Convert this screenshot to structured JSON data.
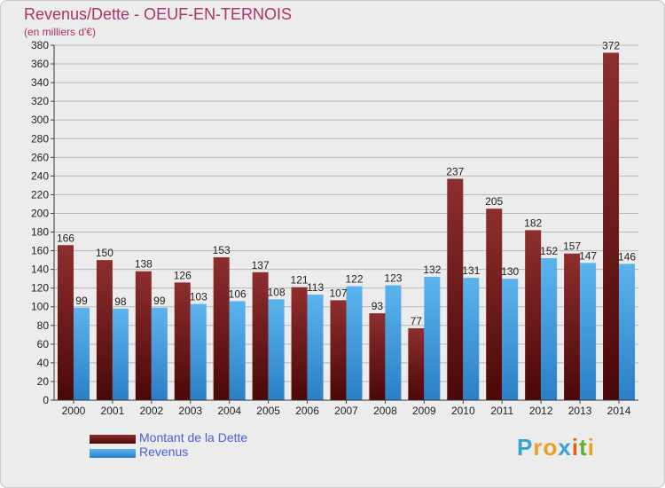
{
  "chart_data": {
    "type": "bar",
    "title": "Revenus/Dette - OEUF-EN-TERNOIS",
    "subtitle": "(en milliers d'€)",
    "xlabel": "",
    "ylabel": "",
    "ylim": [
      0,
      380
    ],
    "ytick_step": 20,
    "categories": [
      "2000",
      "2001",
      "2002",
      "2003",
      "2004",
      "2005",
      "2006",
      "2007",
      "2008",
      "2009",
      "2010",
      "2011",
      "2012",
      "2013",
      "2014"
    ],
    "series": [
      {
        "name": "Montant de la Dette",
        "color": "#7a1a1a",
        "values": [
          166,
          150,
          138,
          126,
          153,
          137,
          121,
          107,
          93,
          77,
          237,
          205,
          182,
          157,
          372
        ]
      },
      {
        "name": "Revenus",
        "color": "#3a9ce0",
        "values": [
          99,
          98,
          99,
          103,
          106,
          108,
          113,
          122,
          123,
          132,
          131,
          130,
          152,
          147,
          146
        ]
      }
    ],
    "grid": true,
    "legend_position": "bottom-left"
  },
  "logo": {
    "letters": [
      "P",
      "r",
      "o",
      "x",
      "i",
      "t",
      "i"
    ],
    "colors": [
      "#3aa0d8",
      "#e8a020",
      "#e8a020",
      "#3aa0d8",
      "#e85a20",
      "#60b030",
      "#e8a020"
    ]
  }
}
